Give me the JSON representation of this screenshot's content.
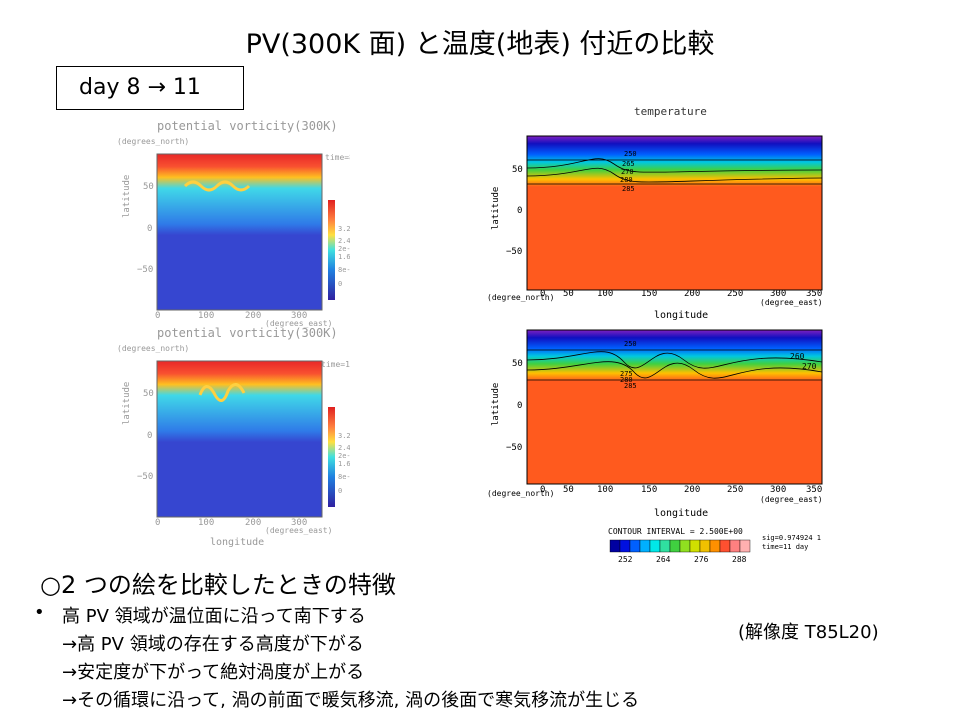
{
  "slide": {
    "title": "PV(300K 面) と温度(地表) 付近の比較",
    "day_box": "day  8 → 11",
    "resolution": "(解像度 T85L20)",
    "heading": "○2 つの絵を比較したときの特徴",
    "bullet_mark": "•",
    "lines": [
      "高 PV 領域が温位面に沿って南下する",
      "→高 PV 領域の存在する高度が下がる",
      "→安定度が下がって絶対渦度が上がる",
      "→その循環に沿って, 渦の前面で暖気移流, 渦の後面で寒気移流が生じる"
    ]
  },
  "pv_plots": [
    {
      "title": "potential vorticity(300K)",
      "yunit": "(degrees_north)",
      "time": "time=8 day",
      "ylabel": "latitude",
      "xunit": "(degrees_east)",
      "xlabel": "",
      "yticks": [
        "50",
        "0",
        "−50"
      ],
      "xticks": [
        "0",
        "100",
        "200",
        "300"
      ],
      "cbar": [
        "3.2e-6",
        "2.4e-6",
        "2e-6",
        "1.6e-6",
        "8e-7",
        "0"
      ]
    },
    {
      "title": "potential vorticity(300K)",
      "yunit": "(degrees_north)",
      "time": "time=11 day",
      "ylabel": "latitude",
      "xunit": "(degrees_east)",
      "xlabel": "longitude",
      "yticks": [
        "50",
        "0",
        "−50"
      ],
      "xticks": [
        "0",
        "100",
        "200",
        "300"
      ],
      "cbar": [
        "3.2e-6",
        "2.4e-6",
        "2e-6",
        "1.6e-6",
        "8e-7",
        "0"
      ]
    }
  ],
  "temp_plots": [
    {
      "title": "temperature",
      "yunit": "(degree_north)",
      "xunit": "(degree_east)",
      "xlabel": "longitude",
      "ylabel": "latitude",
      "yticks": [
        "50",
        "0",
        "−50"
      ],
      "xticks": [
        "0",
        "50",
        "100",
        "150",
        "200",
        "250",
        "300",
        "350"
      ],
      "labels": [
        "250",
        "265",
        "270",
        "280",
        "285"
      ]
    },
    {
      "title": "",
      "yunit": "(degree_north)",
      "xunit": "(degree_east)",
      "xlabel": "longitude",
      "ylabel": "latitude",
      "yticks": [
        "50",
        "0",
        "−50"
      ],
      "xticks": [
        "0",
        "50",
        "100",
        "150",
        "200",
        "250",
        "300",
        "350"
      ],
      "labels": [
        "250",
        "260",
        "270",
        "275",
        "280",
        "285"
      ]
    }
  ],
  "temp_colorbar": {
    "caption": "CONTOUR INTERVAL = 2.500E+00",
    "labels": [
      "252",
      "264",
      "276",
      "288"
    ],
    "sig": "sig=0.974924 1",
    "time": "time=11 day",
    "colors": [
      "#0000a0",
      "#0010e0",
      "#0060ff",
      "#00b0ff",
      "#00e8e8",
      "#30e0a0",
      "#40d040",
      "#90e020",
      "#d0e000",
      "#f0c000",
      "#ff9000",
      "#ff5030",
      "#ff8080",
      "#ffb0b0"
    ]
  },
  "colors": {
    "warm_orange": "#ff5a1e",
    "pv_blue": "#3b4fd8",
    "pv_high": "#e83030"
  }
}
